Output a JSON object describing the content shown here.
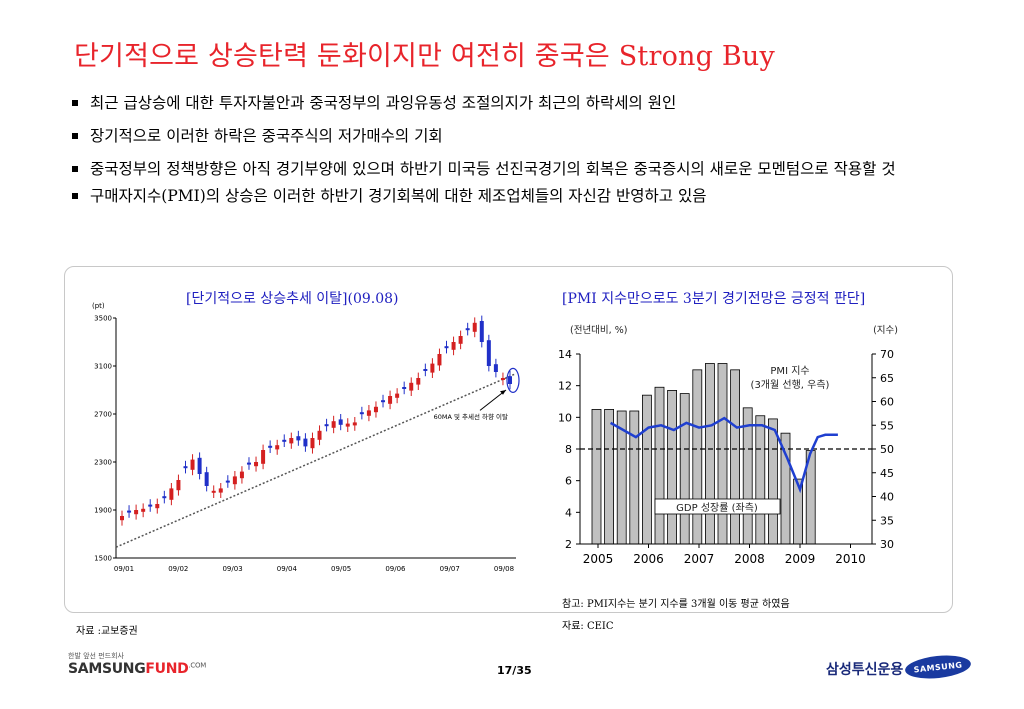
{
  "title": "단기적으로 상승탄력 둔화이지만 여전히 중국은 Strong Buy",
  "bullets": [
    "최근 급상승에 대한 투자자불안과 중국정부의 과잉유동성 조절의지가 최근의 하락세의 원인",
    "장기적으로 이러한 하락은 중국주식의 저가매수의 기회",
    "중국정부의 정책방향은 아직 경기부양에 있으며 하반기 미국등 선진국경기의 회복은 중국증시의 새로운 모멘텀으로 작용할 것",
    "구매자지수(PMI)의 상승은 이러한 하반기 경기회복에 대한 제조업체들의 자신감 반영하고 있음"
  ],
  "left_chart": {
    "title": "[단기적으로 상승추세 이탈](09.08)",
    "unit": "(pt)",
    "annotation": "60MA 및 추세선 하향 이탈",
    "source": "자료 :교보증권"
  },
  "right_chart": {
    "title": "[PMI 지수만으로도 3분기 경기전망은 긍정적 판단]",
    "left_unit": "(전년대비, %)",
    "right_unit": "(지수)",
    "pmi_label_1": "PMI 지수",
    "pmi_label_2": "(3개월 선행, 우측)",
    "gdp_label": "GDP 성장률 (좌측)",
    "note": "참고: PMI지수는 분기 지수를 3개월 이동 평균 하였음",
    "source": "자료: CEIC"
  },
  "footer": {
    "page": "17/35",
    "left_logo_tag": "한발 앞선 펀드회사",
    "left_logo_samsung": "SAMSUNG",
    "left_logo_fund": "FUND",
    "left_logo_com": ".COM",
    "right_logo_kr": "삼성투신운용",
    "right_logo_en": "SAMSUNG"
  },
  "colors": {
    "title": "#e8242b",
    "chart_title": "#2020c0",
    "candle_up": "#d42020",
    "candle_down": "#2030c8",
    "pmi_line": "#1f3fd0",
    "gdp_bar": "#c0c0c0"
  },
  "chart_data": [
    {
      "type": "candlestick",
      "title": "[단기적으로 상승추세 이탈](09.08)",
      "ylabel": "(pt)",
      "ylim": [
        1500,
        3500
      ],
      "yticks": [
        1500,
        1900,
        2300,
        2700,
        3100,
        3500
      ],
      "xticks": [
        "09/01",
        "09/02",
        "09/03",
        "09/04",
        "09/05",
        "09/06",
        "09/07",
        "09/08"
      ],
      "x": [
        "09/01/05",
        "09/01/09",
        "09/01/13",
        "09/01/17",
        "09/01/21",
        "09/01/25",
        "09/02/01",
        "09/02/05",
        "09/02/09",
        "09/02/13",
        "09/02/17",
        "09/02/21",
        "09/02/25",
        "09/03/01",
        "09/03/05",
        "09/03/09",
        "09/03/13",
        "09/03/17",
        "09/03/21",
        "09/03/25",
        "09/04/01",
        "09/04/05",
        "09/04/09",
        "09/04/13",
        "09/04/17",
        "09/04/21",
        "09/04/25",
        "09/05/01",
        "09/05/05",
        "09/05/09",
        "09/05/13",
        "09/05/17",
        "09/05/21",
        "09/05/25",
        "09/06/01",
        "09/06/05",
        "09/06/09",
        "09/06/13",
        "09/06/17",
        "09/06/21",
        "09/06/25",
        "09/07/01",
        "09/07/05",
        "09/07/09",
        "09/07/13",
        "09/07/17",
        "09/07/21",
        "09/07/25",
        "09/08/01",
        "09/08/05",
        "09/08/09",
        "09/08/13",
        "09/08/17",
        "09/08/21",
        "09/08/25",
        "09/08/29"
      ],
      "close": [
        1850,
        1880,
        1900,
        1910,
        1930,
        1950,
        2000,
        2080,
        2150,
        2250,
        2320,
        2200,
        2100,
        2060,
        2080,
        2130,
        2180,
        2220,
        2280,
        2300,
        2400,
        2420,
        2440,
        2470,
        2500,
        2480,
        2430,
        2500,
        2560,
        2600,
        2640,
        2610,
        2620,
        2630,
        2700,
        2730,
        2760,
        2800,
        2850,
        2870,
        2910,
        2960,
        3000,
        3060,
        3120,
        3200,
        3250,
        3300,
        3350,
        3400,
        3460,
        3300,
        3100,
        3050,
        3000,
        2950
      ],
      "trendline": [
        [
          0,
          1640
        ],
        [
          55,
          3020
        ]
      ],
      "annotation": "60MA 및 추세선 하향 이탈"
    },
    {
      "type": "bar+line",
      "title": "[PMI 지수만으로도 3분기 경기전망은 긍정적 판단]",
      "ylabel_left": "(전년대비, %)",
      "ylabel_right": "(지수)",
      "ylim_left": [
        2,
        14
      ],
      "ylim_right": [
        30,
        70
      ],
      "xticks": [
        "2005",
        "2006",
        "2007",
        "2008",
        "2009",
        "2010"
      ],
      "series": [
        {
          "name": "GDP 성장률 (좌측)",
          "type": "bar",
          "x": [
            "2005Q1",
            "2005Q2",
            "2005Q3",
            "2005Q4",
            "2006Q1",
            "2006Q2",
            "2006Q3",
            "2006Q4",
            "2007Q1",
            "2007Q2",
            "2007Q3",
            "2007Q4",
            "2008Q1",
            "2008Q2",
            "2008Q3",
            "2008Q4",
            "2009Q1",
            "2009Q2"
          ],
          "values": [
            10.5,
            10.5,
            10.4,
            10.4,
            11.4,
            11.9,
            11.7,
            11.5,
            13.0,
            13.4,
            13.4,
            13.0,
            10.6,
            10.1,
            9.9,
            9.0,
            6.1,
            7.9
          ]
        },
        {
          "name": "PMI 지수 (3개월 선행, 우측)",
          "type": "line",
          "x": [
            2005.25,
            2005.5,
            2005.75,
            2006.0,
            2006.25,
            2006.5,
            2006.75,
            2007.0,
            2007.25,
            2007.5,
            2007.75,
            2008.0,
            2008.25,
            2008.5,
            2008.75,
            2009.0,
            2009.2,
            2009.35,
            2009.5,
            2009.75
          ],
          "values": [
            55.5,
            54.0,
            52.5,
            54.5,
            55.0,
            54.0,
            55.5,
            54.5,
            55.0,
            56.5,
            54.5,
            55.0,
            55.0,
            54.0,
            48.0,
            41.5,
            49.0,
            52.5,
            53.0,
            53.0
          ]
        }
      ],
      "reference_line": {
        "axis": "left",
        "value": 8
      }
    }
  ]
}
